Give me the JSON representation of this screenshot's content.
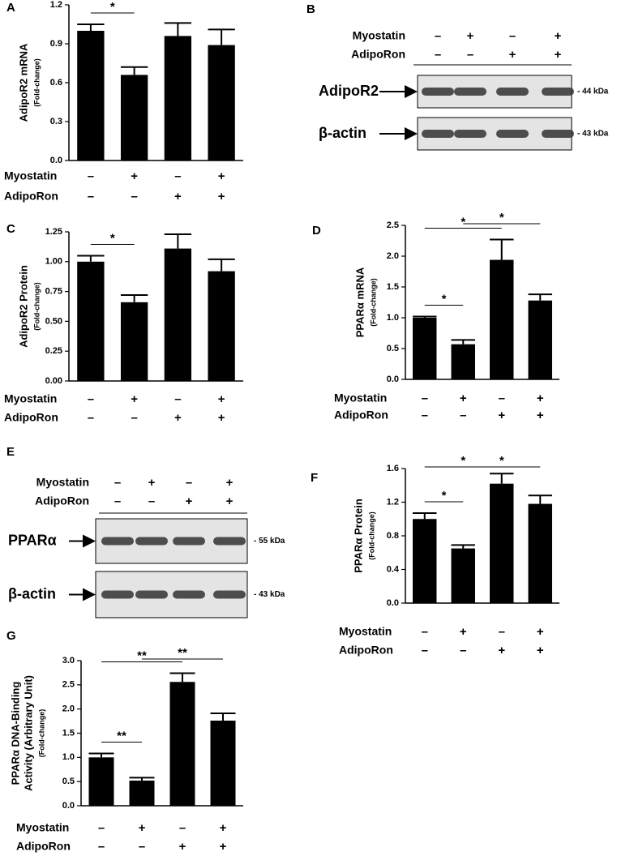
{
  "chart_data": [
    {
      "type": "bar",
      "panel": "A",
      "y_label": [
        "AdipoR2 mRNA",
        "(Fold-change)"
      ],
      "row_labels": [
        "Myostatin",
        "AdipoRon"
      ],
      "conditions": [
        [
          "–",
          "+",
          "–",
          "+"
        ],
        [
          "–",
          "–",
          "+",
          "+"
        ]
      ],
      "values": [
        1.0,
        0.66,
        0.96,
        0.89
      ],
      "errors": [
        0.05,
        0.06,
        0.1,
        0.12
      ],
      "color": "#000000",
      "ylim": [
        0,
        1.2
      ],
      "yticks": [
        {
          "value": 0,
          "label": "0.0"
        },
        0.3,
        0.6,
        0.9,
        1.2
      ],
      "significance": [
        {
          "from": 0,
          "to": 1,
          "label": "*"
        }
      ]
    },
    {
      "type": "bar",
      "panel": "C",
      "y_label": [
        "AdipoR2 Protein",
        "(Fold-change)"
      ],
      "row_labels": [
        "Myostatin",
        "AdipoRon"
      ],
      "conditions": [
        [
          "–",
          "+",
          "–",
          "+"
        ],
        [
          "–",
          "–",
          "+",
          "+"
        ]
      ],
      "values": [
        1.0,
        0.66,
        1.11,
        0.92
      ],
      "errors": [
        0.05,
        0.06,
        0.12,
        0.1
      ],
      "color": "#000000",
      "ylim": [
        0,
        1.25
      ],
      "yticks": [
        {
          "value": 0,
          "label": "0.00"
        },
        0.25,
        {
          "value": 0.5,
          "label": "0.50"
        },
        0.75,
        {
          "value": 1,
          "label": "1.00"
        },
        1.25
      ],
      "significance": [
        {
          "from": 0,
          "to": 1,
          "label": "*"
        }
      ]
    },
    {
      "type": "bar",
      "panel": "D",
      "y_label": [
        "PPARα mRNA",
        "(Fold-change)"
      ],
      "row_labels": [
        "Myostatin",
        "AdipoRon"
      ],
      "conditions": [
        [
          "–",
          "+",
          "–",
          "+"
        ],
        [
          "–",
          "–",
          "+",
          "+"
        ]
      ],
      "values": [
        1.0,
        0.57,
        1.94,
        1.28
      ],
      "errors": [
        0.02,
        0.07,
        0.33,
        0.1
      ],
      "color": "#000000",
      "ylim": [
        0,
        2.5
      ],
      "yticks": [
        {
          "value": 0,
          "label": "0.0"
        },
        0.5,
        {
          "value": 1,
          "label": "1.0"
        },
        1.5,
        {
          "value": 2,
          "label": "2.0"
        },
        2.5
      ],
      "significance": [
        {
          "from": 0,
          "to": 1,
          "label": "*"
        },
        {
          "from": 0,
          "to": 2,
          "label": "*"
        },
        {
          "from": 1,
          "to": 3,
          "label": "*"
        }
      ]
    },
    {
      "type": "bar",
      "panel": "F",
      "y_label": [
        "PPARα Protein",
        "(Fold-change)"
      ],
      "row_labels": [
        "Myostatin",
        "AdipoRon"
      ],
      "conditions": [
        [
          "–",
          "+",
          "–",
          "+"
        ],
        [
          "–",
          "–",
          "+",
          "+"
        ]
      ],
      "values": [
        1.0,
        0.65,
        1.42,
        1.18
      ],
      "errors": [
        0.07,
        0.04,
        0.12,
        0.1
      ],
      "color": "#000000",
      "ylim": [
        0,
        1.6
      ],
      "yticks": [
        {
          "value": 0,
          "label": "0.0"
        },
        0.4,
        0.8,
        1.2,
        1.6
      ],
      "significance": [
        {
          "from": 0,
          "to": 1,
          "label": "*"
        },
        {
          "from": 0,
          "to": 2,
          "label": "*"
        },
        {
          "from": 1,
          "to": 3,
          "label": "*"
        }
      ]
    },
    {
      "type": "bar",
      "panel": "G",
      "y_label": [
        "PPARα DNA-Binding",
        "Activity (Arbitrary Unit)",
        "(Fold-change)"
      ],
      "row_labels": [
        "Myostatin",
        "AdipoRon"
      ],
      "conditions": [
        [
          "–",
          "+",
          "–",
          "+"
        ],
        [
          "–",
          "–",
          "+",
          "+"
        ]
      ],
      "values": [
        1.0,
        0.52,
        2.56,
        1.76
      ],
      "errors": [
        0.08,
        0.06,
        0.18,
        0.15
      ],
      "color": "#000000",
      "ylim": [
        0,
        3
      ],
      "yticks": [
        {
          "value": 0,
          "label": "0.0"
        },
        0.5,
        {
          "value": 1,
          "label": "1.0"
        },
        1.5,
        {
          "value": 2,
          "label": "2.0"
        },
        2.5,
        {
          "value": 3,
          "label": "3.0"
        }
      ],
      "significance": [
        {
          "from": 0,
          "to": 1,
          "label": "**"
        },
        {
          "from": 0,
          "to": 2,
          "label": "**"
        },
        {
          "from": 1,
          "to": 3,
          "label": "**"
        }
      ]
    }
  ],
  "blots": [
    {
      "panel": "B",
      "row_labels": [
        "Myostatin",
        "AdipoRon"
      ],
      "conditions": [
        [
          "–",
          "+",
          "–",
          "+"
        ],
        [
          "–",
          "–",
          "+",
          "+"
        ]
      ],
      "bands": [
        {
          "label": "AdipoR2",
          "size": "- 44 kDa"
        },
        {
          "label": "β-actin",
          "size": "- 43 kDa"
        }
      ]
    },
    {
      "panel": "E",
      "row_labels": [
        "Myostatin",
        "AdipoRon"
      ],
      "conditions": [
        [
          "–",
          "+",
          "–",
          "+"
        ],
        [
          "–",
          "–",
          "+",
          "+"
        ]
      ],
      "bands": [
        {
          "label": "PPARα",
          "size": "- 55 kDa"
        },
        {
          "label": "β-actin",
          "size": "- 43 kDa"
        }
      ]
    }
  ]
}
